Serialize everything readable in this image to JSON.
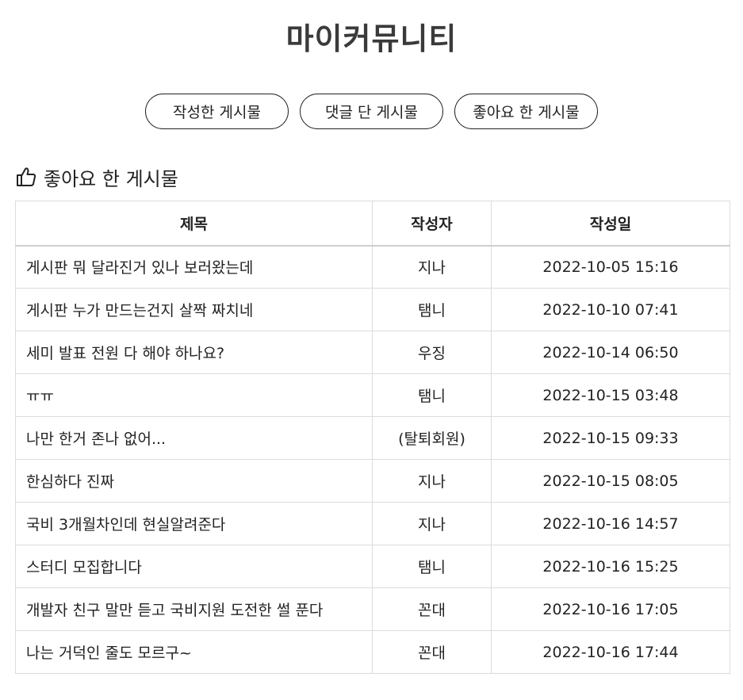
{
  "header": {
    "title": "마이커뮤니티"
  },
  "tabs": [
    {
      "label": "작성한 게시물"
    },
    {
      "label": "댓글 단 게시물"
    },
    {
      "label": "좋아요 한 게시물"
    }
  ],
  "section": {
    "title": "좋아요 한 게시물",
    "icon": "thumbs-up-icon"
  },
  "table": {
    "columns": [
      "제목",
      "작성자",
      "작성일"
    ],
    "rows": [
      {
        "title": "게시판 뭐 달라진거 있나 보러왔는데",
        "author": "지나",
        "date": "2022-10-05 15:16"
      },
      {
        "title": "게시판 누가 만드는건지 살짝 짜치네",
        "author": "탬니",
        "date": "2022-10-10 07:41"
      },
      {
        "title": "세미 발표 전원 다 해야 하나요?",
        "author": "우징",
        "date": "2022-10-14 06:50"
      },
      {
        "title": "ㅠㅠ",
        "author": "탬니",
        "date": "2022-10-15 03:48"
      },
      {
        "title": "나만 한거 존나 없어...",
        "author": "(탈퇴회원)",
        "date": "2022-10-15 09:33"
      },
      {
        "title": "한심하다 진짜",
        "author": "지나",
        "date": "2022-10-15 08:05"
      },
      {
        "title": "국비 3개월차인데 현실알려준다",
        "author": "지나",
        "date": "2022-10-16 14:57"
      },
      {
        "title": "스터디 모집합니다",
        "author": "탬니",
        "date": "2022-10-16 15:25"
      },
      {
        "title": "개발자 친구 말만 듣고 국비지원 도전한 썰 푼다",
        "author": "꼰대",
        "date": "2022-10-16 17:05"
      },
      {
        "title": "나는 거덕인 줄도 모르구~",
        "author": "꼰대",
        "date": "2022-10-16 17:44"
      }
    ]
  }
}
